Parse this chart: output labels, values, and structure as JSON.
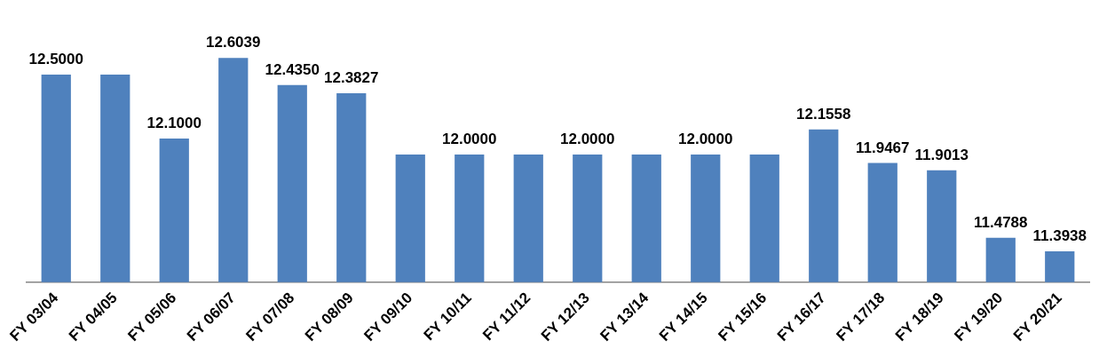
{
  "chart_data": {
    "type": "bar",
    "categories": [
      "FY 03/04",
      "FY 04/05",
      "FY 05/06",
      "FY 06/07",
      "FY 07/08",
      "FY 08/09",
      "FY 09/10",
      "FY 10/11",
      "FY 11/12",
      "FY 12/13",
      "FY 13/14",
      "FY 14/15",
      "FY 15/16",
      "FY 16/17",
      "FY 17/18",
      "FY 18/19",
      "FY 19/20",
      "FY 20/21"
    ],
    "values": [
      12.5,
      12.5,
      12.1,
      12.6039,
      12.435,
      12.3827,
      12.0,
      12.0,
      12.0,
      12.0,
      12.0,
      12.0,
      12.0,
      12.1558,
      11.9467,
      11.9013,
      11.4788,
      11.3938
    ],
    "value_labels": [
      "12.5000",
      null,
      "12.1000",
      "12.6039",
      "12.4350",
      "12.3827",
      null,
      "12.0000",
      null,
      "12.0000",
      null,
      "12.0000",
      null,
      "12.1558",
      "11.9467",
      "11.9013",
      "11.4788",
      "11.3938"
    ],
    "color": "#4f81bd",
    "tick_labels": "x"
  }
}
